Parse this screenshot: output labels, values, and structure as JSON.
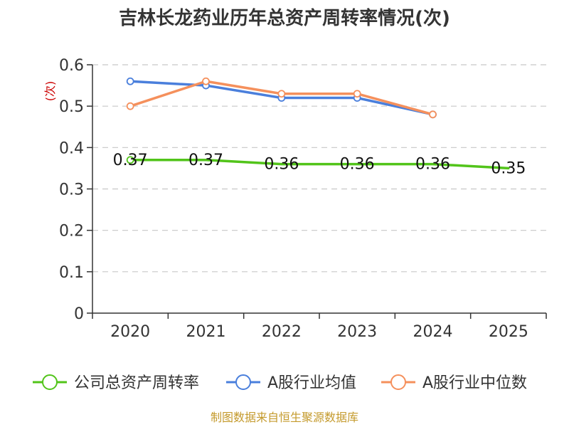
{
  "chart_data": {
    "type": "line",
    "title": "吉林长龙药业历年总资产周转率情况(次)",
    "ylabel": "(次)",
    "xlabel": "",
    "categories": [
      "2020",
      "2021",
      "2022",
      "2023",
      "2024",
      "2025"
    ],
    "ylim": [
      0,
      0.6
    ],
    "yticks": [
      0,
      0.1,
      0.2,
      0.3,
      0.4,
      0.5,
      0.6
    ],
    "ytick_labels": [
      "0",
      "0.1",
      "0.2",
      "0.3",
      "0.4",
      "0.5",
      "0.6"
    ],
    "grid": true,
    "legend": "bottom",
    "series": [
      {
        "name": "公司总资产周转率",
        "color": "#52c41a",
        "values": [
          0.37,
          0.37,
          0.36,
          0.36,
          0.36,
          0.35
        ],
        "labels": [
          "0.37",
          "0.37",
          "0.36",
          "0.36",
          "0.36",
          "0.35"
        ]
      },
      {
        "name": "A股行业均值",
        "color": "#4a7fdc",
        "values": [
          0.56,
          0.55,
          0.52,
          0.52,
          0.48,
          null
        ]
      },
      {
        "name": "A股行业中位数",
        "color": "#f5905c",
        "values": [
          0.5,
          0.56,
          0.53,
          0.53,
          0.48,
          null
        ]
      }
    ],
    "source": "制图数据来自恒生聚源数据库"
  }
}
